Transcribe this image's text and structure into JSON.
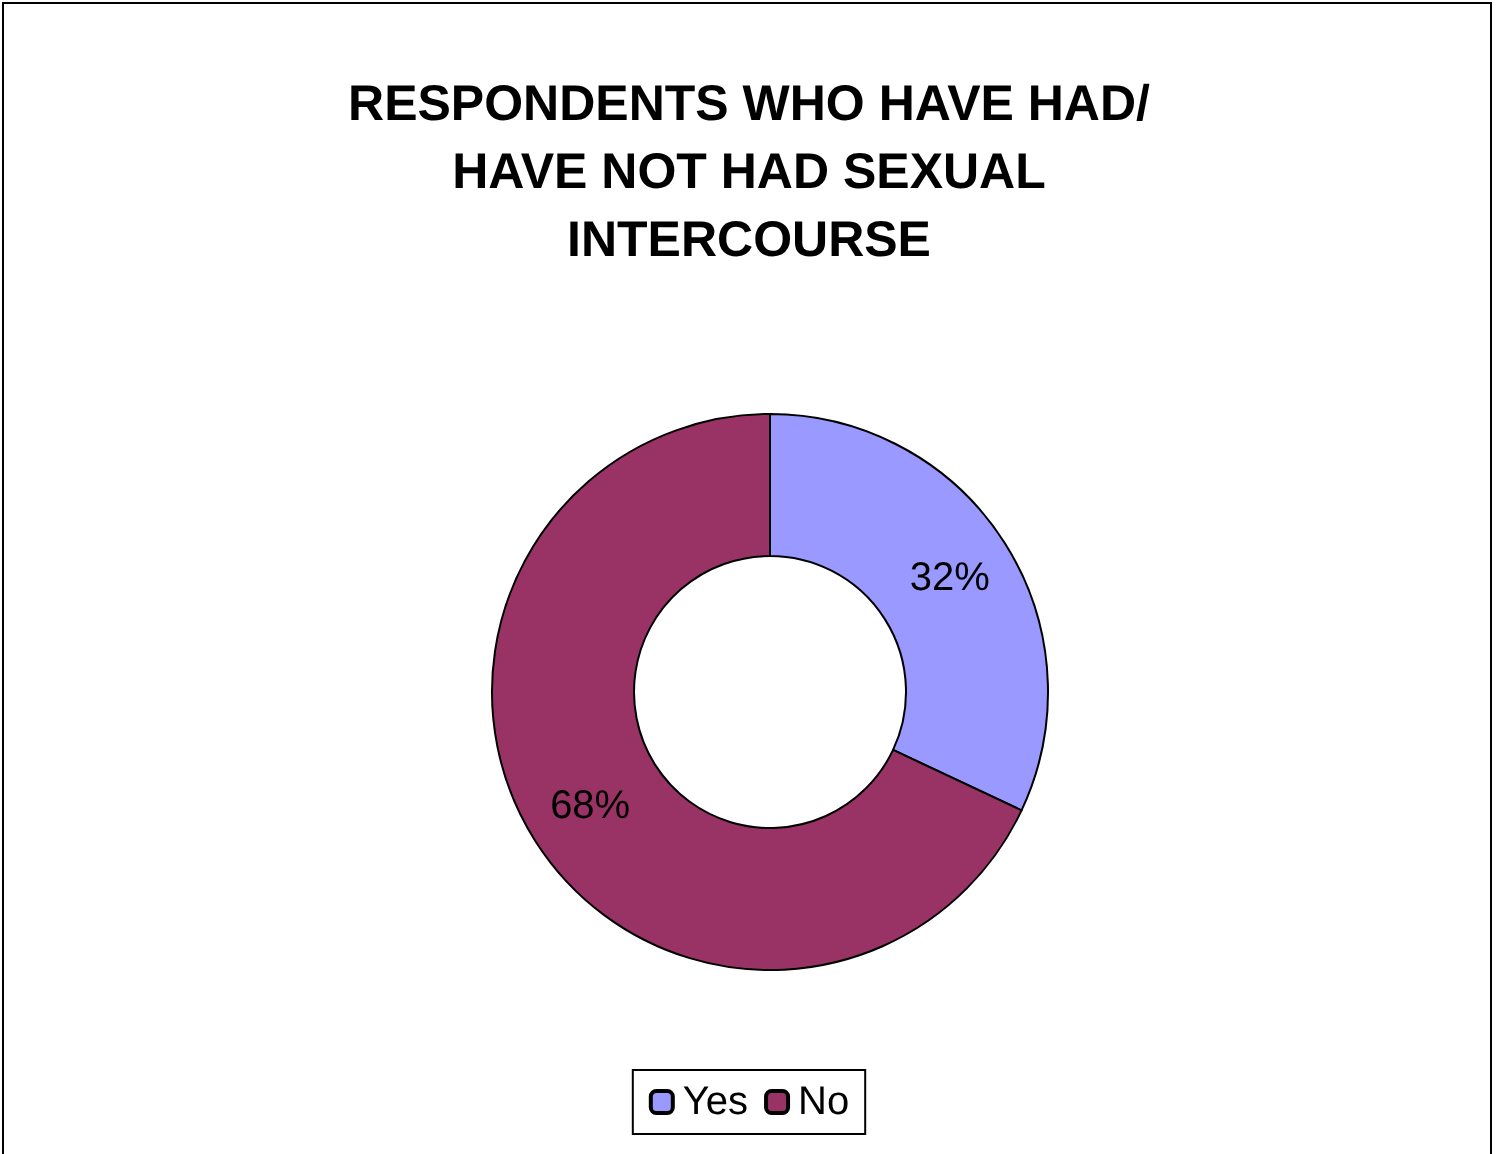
{
  "chart_data": {
    "type": "donut",
    "title": "RESPONDENTS WHO HAVE HAD/\nHAVE NOT HAD SEXUAL\nINTERCOURSE",
    "categories": [
      "Yes",
      "No"
    ],
    "values": [
      32,
      68
    ],
    "colors": [
      "#9999ff",
      "#993366"
    ],
    "value_labels": [
      "32%",
      "68%"
    ],
    "legend": "bottom"
  }
}
